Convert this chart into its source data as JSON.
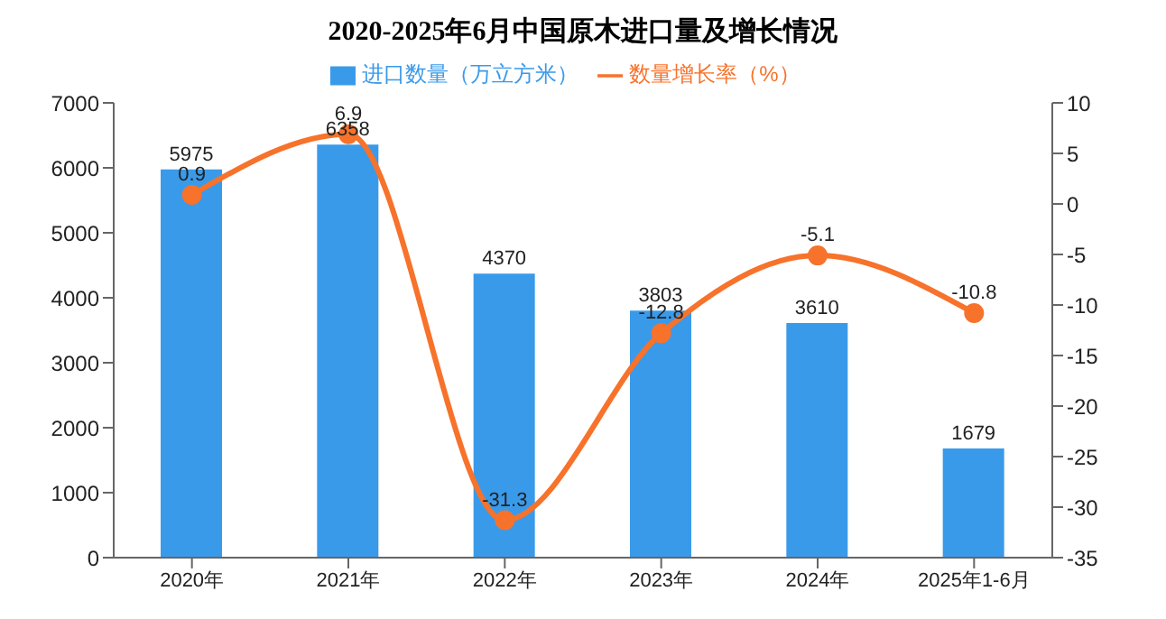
{
  "chart_data": {
    "type": "bar",
    "title": "2020-2025年6月中国原木进口量及增长情况",
    "categories": [
      "2020年",
      "2021年",
      "2022年",
      "2023年",
      "2024年",
      "2025年1-6月"
    ],
    "series": [
      {
        "name": "进口数量（万立方米）",
        "color": "#3a9aea",
        "values": [
          5975,
          6358,
          4370,
          3803,
          3610,
          1679
        ]
      },
      {
        "name": "数量增长率（%）",
        "type": "line",
        "axis": "y2",
        "color": "#f7722a",
        "values": [
          0.9,
          6.9,
          -31.3,
          -12.8,
          -5.1,
          -10.8
        ]
      }
    ],
    "ylim": [
      0,
      7000
    ],
    "yticks": [
      0,
      1000,
      2000,
      3000,
      4000,
      5000,
      6000,
      7000
    ],
    "y2lim": [
      -35,
      10
    ],
    "y2ticks": [
      -35,
      -30,
      -25,
      -20,
      -15,
      -10,
      -5,
      0,
      5,
      10
    ],
    "legend": "top",
    "marker": "circle",
    "data_labels": true,
    "grid": false
  }
}
